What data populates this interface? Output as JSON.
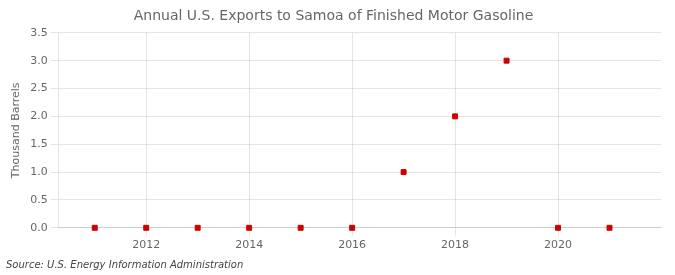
{
  "chart_data": {
    "type": "scatter",
    "title": "Annual U.S. Exports to Samoa of Finished Motor Gasoline",
    "ylabel": "Thousand Barrels",
    "annotations": [
      "Source: U.S. Energy Information Administration"
    ],
    "x": [
      2011,
      2012,
      2013,
      2014,
      2015,
      2016,
      2017,
      2018,
      2019,
      2020,
      2021
    ],
    "values": [
      0,
      0,
      0,
      0,
      0,
      0,
      1.0,
      2.0,
      3.0,
      0,
      0
    ],
    "color": "#cc0000",
    "marker": "square",
    "xlim": [
      2010.3,
      2022.0
    ],
    "xticks": [
      2012,
      2014,
      2016,
      2018,
      2020
    ],
    "ylim": [
      0,
      3.5
    ],
    "yticks": [
      {
        "value": 0,
        "label": "0.0"
      },
      0.5,
      {
        "value": 1,
        "label": "1.0"
      },
      1.5,
      {
        "value": 2,
        "label": "2.0"
      },
      2.5,
      {
        "value": 3,
        "label": "3.0"
      },
      3.5
    ],
    "grid": true
  }
}
